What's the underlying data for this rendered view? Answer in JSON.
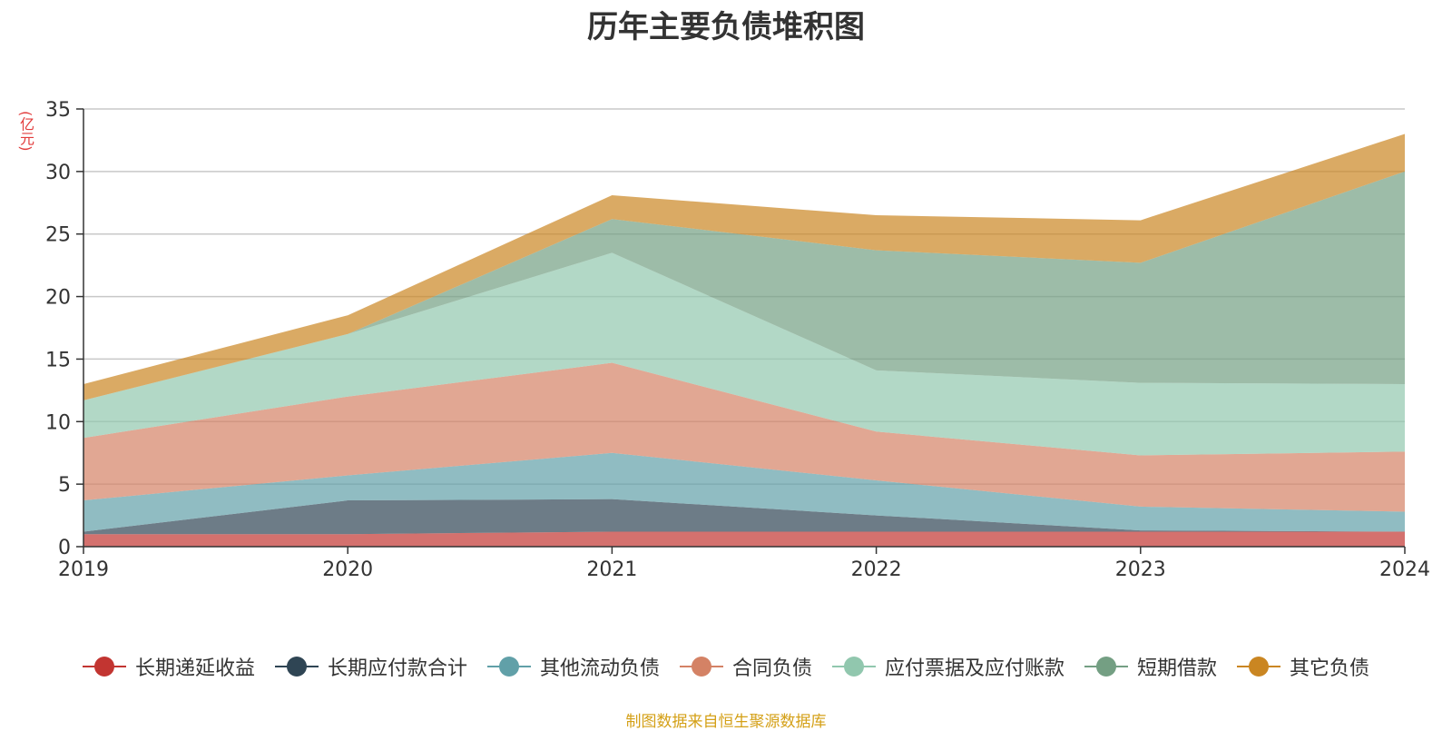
{
  "chart_data": {
    "type": "area",
    "stacked": true,
    "title": "历年主要负债堆积图",
    "ylabel": "(亿元)",
    "xlabel": "",
    "categories": [
      "2019",
      "2020",
      "2021",
      "2022",
      "2023",
      "2024"
    ],
    "ylim": [
      0,
      35
    ],
    "yticks": [
      0,
      5,
      10,
      15,
      20,
      25,
      30,
      35
    ],
    "grid": true,
    "legend_position": "bottom",
    "series": [
      {
        "name": "长期递延收益",
        "color": "#c23531",
        "values": [
          1.0,
          1.0,
          1.2,
          1.2,
          1.2,
          1.2
        ]
      },
      {
        "name": "长期应付款合计",
        "color": "#2f4554",
        "values": [
          0.2,
          2.7,
          2.6,
          1.3,
          0.1,
          0.0
        ]
      },
      {
        "name": "其他流动负债",
        "color": "#61a0a8",
        "values": [
          2.5,
          2.0,
          3.7,
          2.8,
          1.9,
          1.6
        ]
      },
      {
        "name": "合同负债",
        "color": "#d48265",
        "values": [
          5.0,
          6.3,
          7.2,
          3.9,
          4.1,
          4.8
        ]
      },
      {
        "name": "应付票据及应付账款",
        "color": "#91c7ae",
        "values": [
          3.0,
          5.0,
          8.8,
          4.9,
          5.8,
          5.4
        ]
      },
      {
        "name": "短期借款",
        "color": "#749f83",
        "values": [
          0.0,
          0.0,
          2.7,
          9.6,
          9.6,
          17.0
        ]
      },
      {
        "name": "其它负债",
        "color": "#ca8622",
        "values": [
          1.3,
          1.5,
          1.9,
          2.8,
          3.4,
          3.0
        ]
      }
    ],
    "source_note": "制图数据来自恒生聚源数据库"
  }
}
